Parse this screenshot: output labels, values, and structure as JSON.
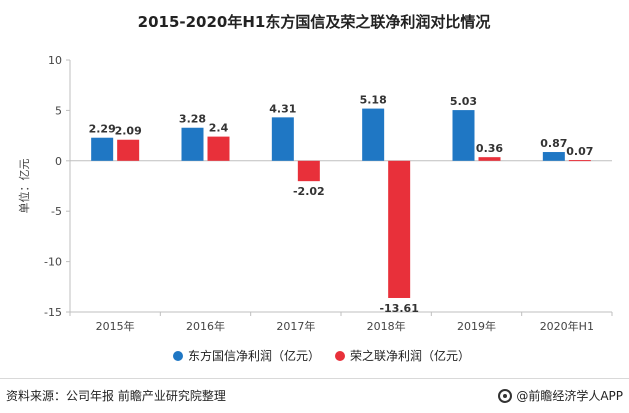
{
  "chart_data": {
    "type": "bar",
    "title": "2015-2020年H1东方国信及荣之联净利润对比情况",
    "ylabel": "单位：亿元",
    "xlabel": "",
    "categories": [
      "2015年",
      "2016年",
      "2017年",
      "2018年",
      "2019年",
      "2020年H1"
    ],
    "ylim": [
      -15,
      10
    ],
    "yticks": [
      10,
      5,
      0,
      -5,
      -10,
      -15
    ],
    "grid": false,
    "legend_position": "bottom",
    "series": [
      {
        "name": "东方国信净利润（亿元）",
        "color": "#1f77c4",
        "values": [
          2.29,
          3.28,
          4.31,
          5.18,
          5.03,
          0.87
        ],
        "labels": [
          "2.29",
          "3.28",
          "4.31",
          "5.18",
          "5.03",
          "0.87"
        ]
      },
      {
        "name": "荣之联净利润（亿元）",
        "color": "#e8303a",
        "values": [
          2.09,
          2.4,
          -2.02,
          -13.61,
          0.36,
          0.07
        ],
        "labels": [
          "2.09",
          "2.4",
          "-2.02",
          "-13.61",
          "0.36",
          "0.07"
        ]
      }
    ]
  },
  "footer": {
    "source": "资料来源：公司年报 前瞻产业研究院整理",
    "brand": "@前瞻经济学人APP"
  }
}
